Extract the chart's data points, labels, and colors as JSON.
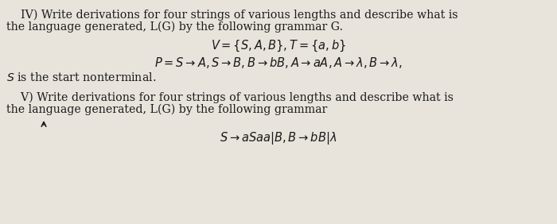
{
  "bg_color": "#e8e4dc",
  "text_color": "#1a1a1a",
  "line1": "    IV) Write derivations for four strings of various lengths and describe what is",
  "line2": "the language generated, L(G) by the following grammar G.",
  "line3": "$V = \\{S, A, B\\}, T = \\{a, b\\}$",
  "line4": "$P = S \\rightarrow A, S \\rightarrow B, B \\rightarrow bB, A \\rightarrow aA, A \\rightarrow \\lambda, B \\rightarrow \\lambda,$",
  "line5": "$S$ is the start nonterminal.",
  "line6": "    V) Write derivations for four strings of various lengths and describe what is",
  "line7": "the language generated, L(G) by the following grammar",
  "line8": "$S \\rightarrow aSaa|B, B \\rightarrow bB|\\lambda$",
  "fig_width": 7.0,
  "fig_height": 2.82,
  "dpi": 100
}
